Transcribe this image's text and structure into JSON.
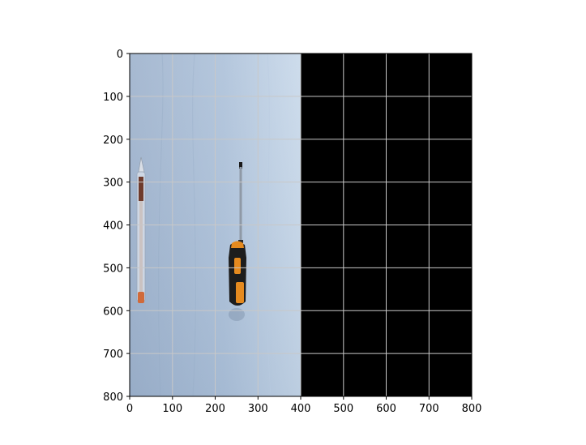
{
  "plot": {
    "x_ticks": [
      "0",
      "100",
      "200",
      "300",
      "400",
      "500",
      "600",
      "700",
      "800"
    ],
    "y_ticks": [
      "0",
      "100",
      "200",
      "300",
      "400",
      "500",
      "600",
      "700",
      "800"
    ],
    "xlim": [
      0,
      800
    ],
    "ylim": [
      800,
      0
    ],
    "grid": true,
    "content": "photo of a screwdriver and a pen on a light blue wooden surface, left half of the image; right half black"
  },
  "colors": {
    "background": "#ffffff",
    "photo_blue": "#a9bdd6",
    "padding": "#000000",
    "grid": "#c8c8c8",
    "handle_black": "#1d1d1d",
    "handle_orange": "#e58a1f"
  }
}
